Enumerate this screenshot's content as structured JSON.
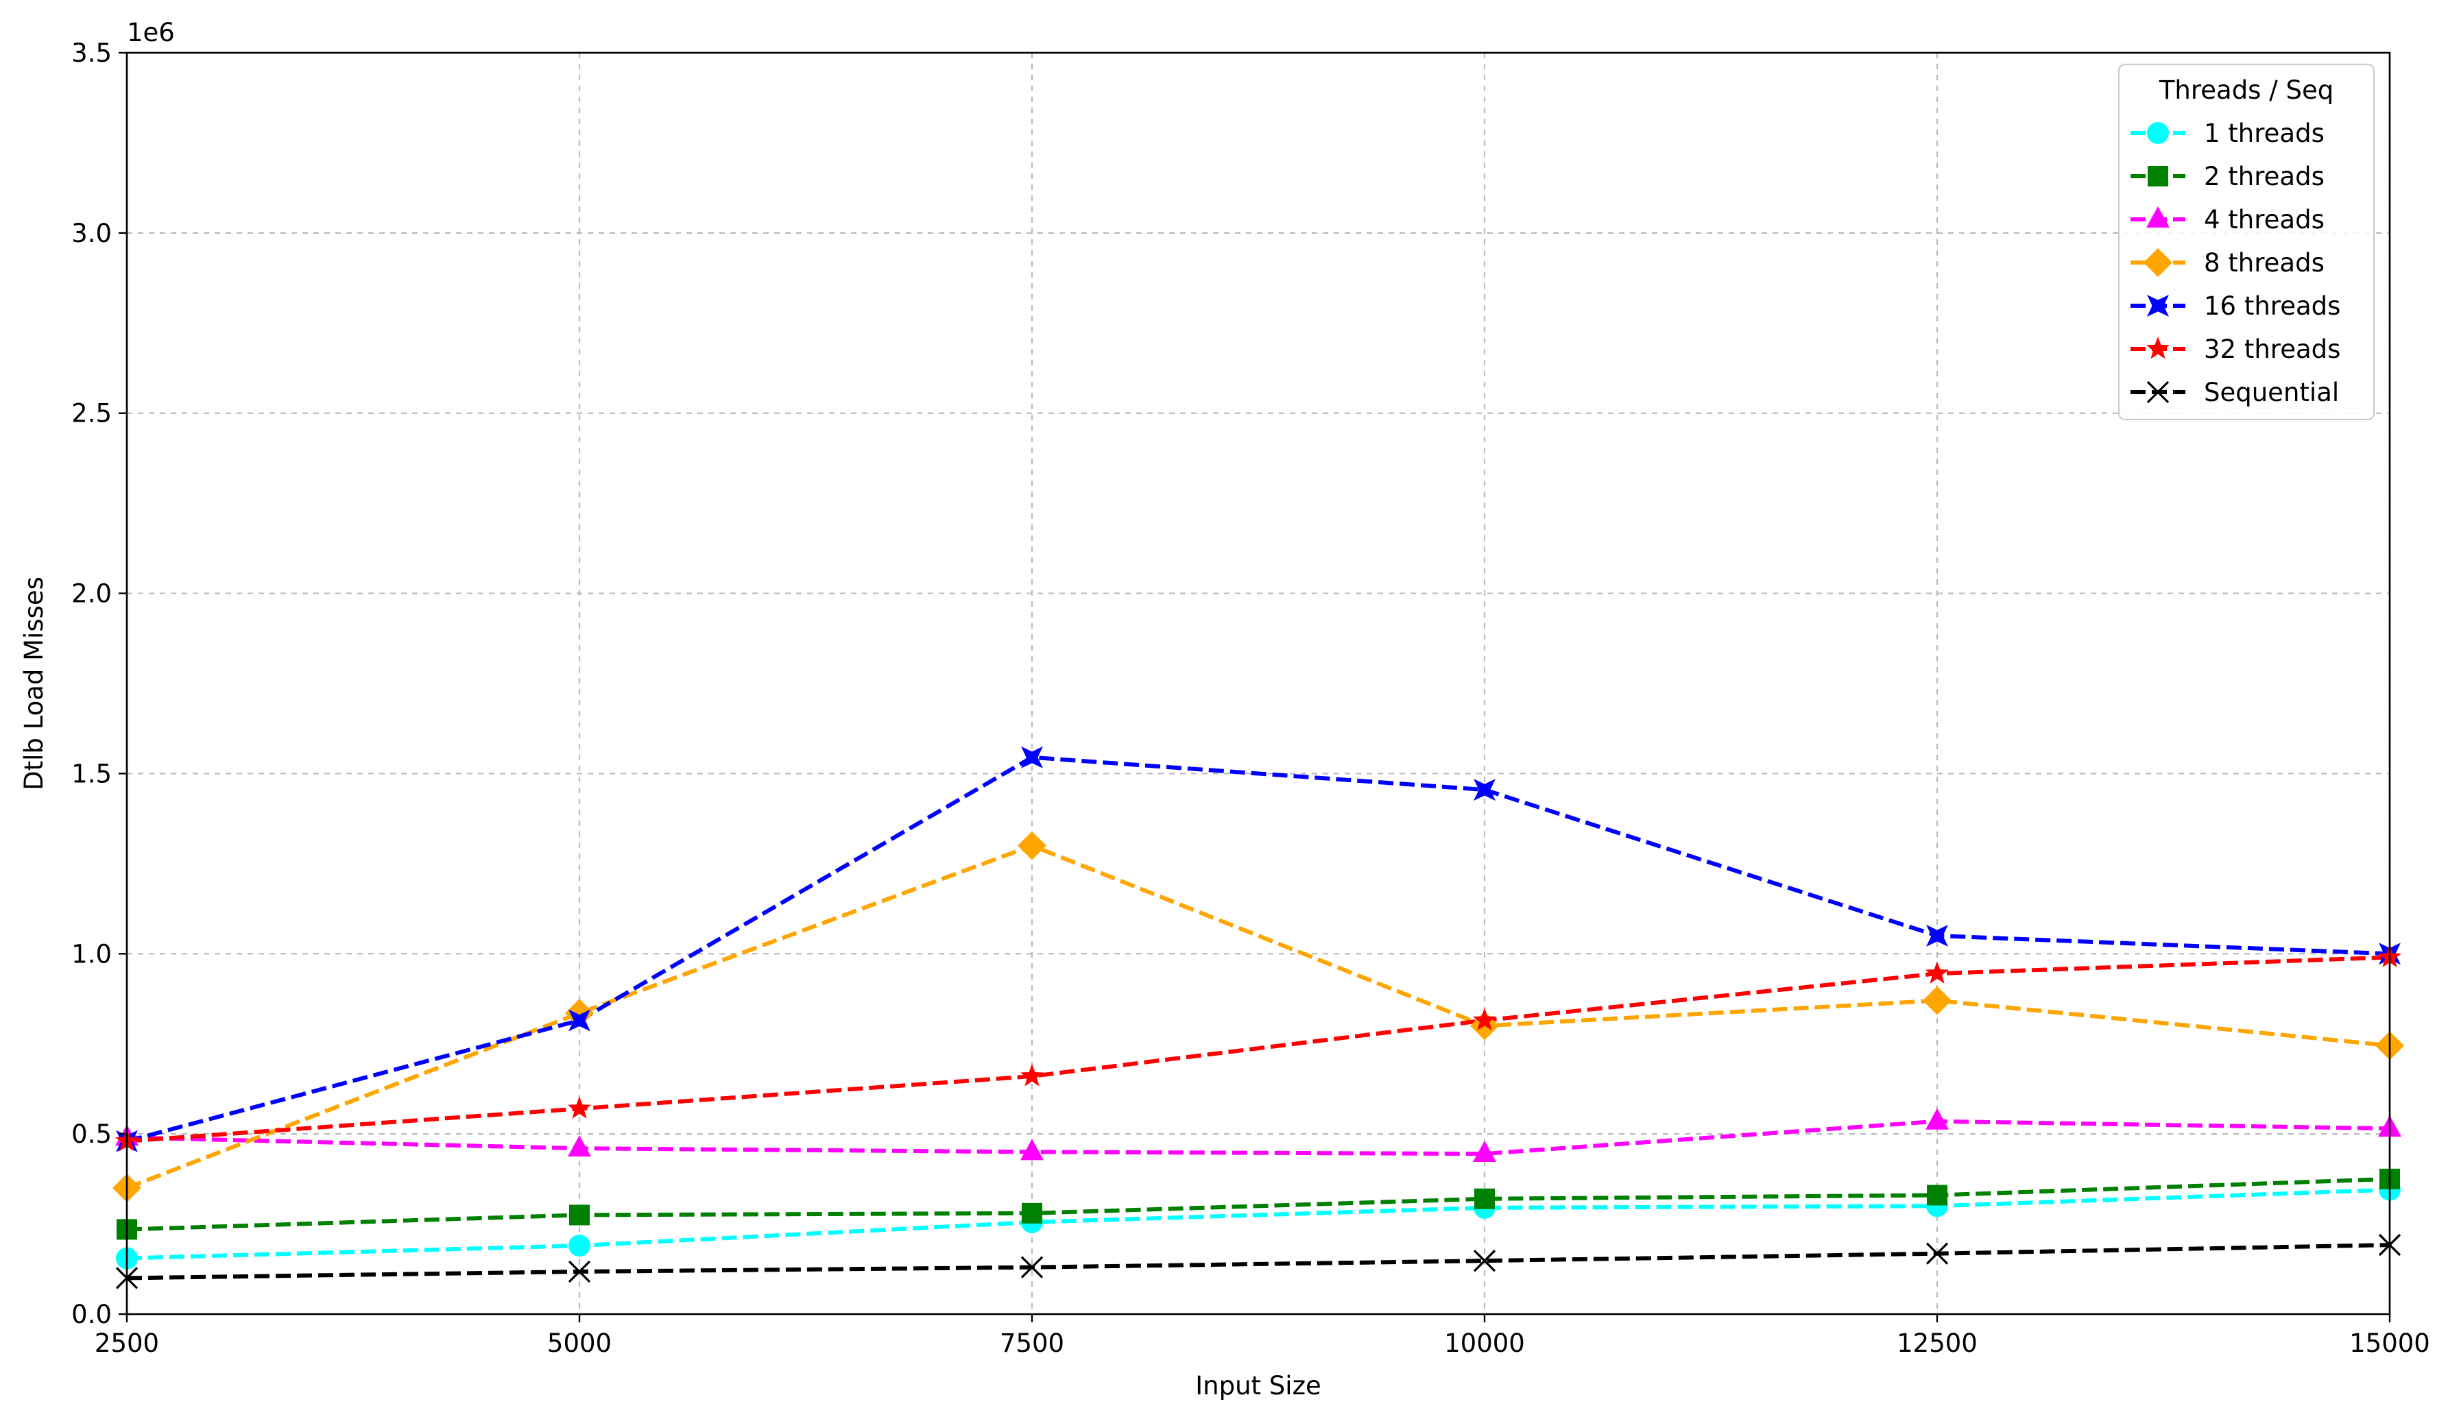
{
  "chart_data": {
    "type": "line",
    "title": "",
    "xlabel": "Input Size",
    "ylabel": "Dtlb Load Misses",
    "y_offset_label": "1e6",
    "x": [
      2500,
      5000,
      7500,
      10000,
      12500,
      15000
    ],
    "xlim": [
      2500,
      15000
    ],
    "ylim": [
      0,
      3500000
    ],
    "xticks": [
      2500,
      5000,
      7500,
      10000,
      12500,
      15000
    ],
    "xtick_labels": [
      "2500",
      "5000",
      "7500",
      "10000",
      "12500",
      "15000"
    ],
    "yticks": [
      0,
      500000,
      1000000,
      1500000,
      2000000,
      2500000,
      3000000,
      3500000
    ],
    "ytick_labels": [
      "0.0",
      "0.5",
      "1.0",
      "1.5",
      "2.0",
      "2.5",
      "3.0",
      "3.5"
    ],
    "grid": true,
    "legend_title": "Threads / Seq",
    "legend_position": "top-right",
    "series": [
      {
        "name": "1 threads",
        "color": "#00ffff",
        "marker": "circle",
        "values": [
          155000,
          190000,
          255000,
          295000,
          300000,
          345000
        ]
      },
      {
        "name": "2 threads",
        "color": "#008000",
        "marker": "square",
        "values": [
          235000,
          275000,
          280000,
          320000,
          330000,
          375000
        ]
      },
      {
        "name": "4 threads",
        "color": "#ff00ff",
        "marker": "triangle",
        "values": [
          490000,
          460000,
          450000,
          445000,
          535000,
          515000
        ]
      },
      {
        "name": "8 threads",
        "color": "#ffa500",
        "marker": "diamond",
        "values": [
          350000,
          835000,
          1300000,
          800000,
          870000,
          745000
        ]
      },
      {
        "name": "16 threads",
        "color": "#0000ff",
        "marker": "x-filled",
        "values": [
          480000,
          815000,
          1545000,
          1455000,
          1050000,
          1000000
        ]
      },
      {
        "name": "32 threads",
        "color": "#ff0000",
        "marker": "star",
        "values": [
          480000,
          570000,
          660000,
          815000,
          945000,
          990000
        ]
      },
      {
        "name": "Sequential",
        "color": "#000000",
        "marker": "x",
        "values": [
          100000,
          118000,
          130000,
          148000,
          168000,
          192000
        ]
      }
    ]
  }
}
